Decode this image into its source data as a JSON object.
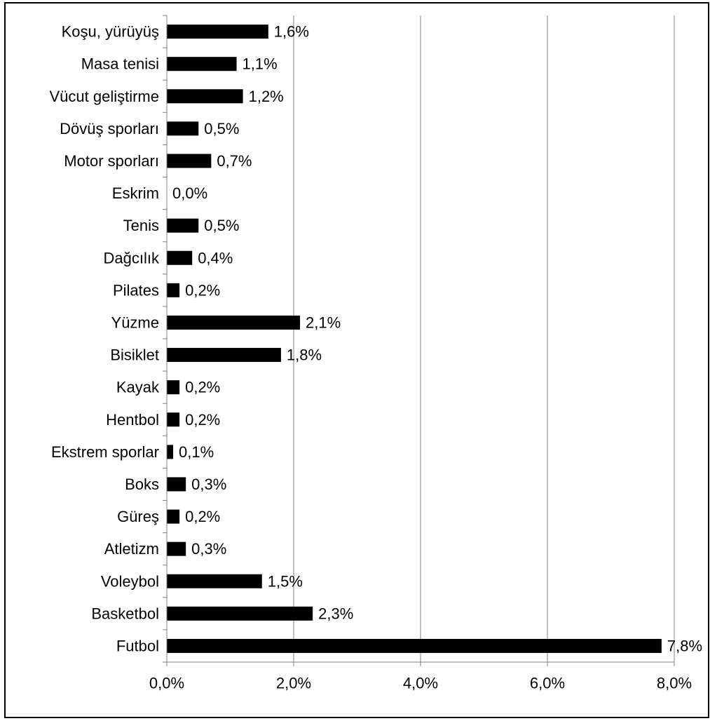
{
  "chart_data": {
    "type": "bar",
    "orientation": "horizontal",
    "categories": [
      "Koşu, yürüyüş",
      "Masa tenisi",
      "Vücut geliştirme",
      "Dövüş sporları",
      "Motor sporları",
      "Eskrim",
      "Tenis",
      "Dağcılık",
      "Pilates",
      "Yüzme",
      "Bisiklet",
      "Kayak",
      "Hentbol",
      "Ekstrem sporlar",
      "Boks",
      "Güreş",
      "Atletizm",
      "Voleybol",
      "Basketbol",
      "Futbol"
    ],
    "values": [
      1.6,
      1.1,
      1.2,
      0.5,
      0.7,
      0.0,
      0.5,
      0.4,
      0.2,
      2.1,
      1.8,
      0.2,
      0.2,
      0.1,
      0.3,
      0.2,
      0.3,
      1.5,
      2.3,
      7.8
    ],
    "data_labels": [
      "1,6%",
      "1,1%",
      "1,2%",
      "0,5%",
      "0,7%",
      "0,0%",
      "0,5%",
      "0,4%",
      "0,2%",
      "2,1%",
      "1,8%",
      "0,2%",
      "0,2%",
      "0,1%",
      "0,3%",
      "0,2%",
      "0,3%",
      "1,5%",
      "2,3%",
      "7,8%"
    ],
    "xlim": [
      0,
      8
    ],
    "x_ticks": [
      0,
      2,
      4,
      6,
      8
    ],
    "x_tick_labels": [
      "0,0%",
      "2,0%",
      "4,0%",
      "6,0%",
      "8,0%"
    ],
    "grid": "vertical",
    "bar_color": "#000000",
    "grid_color": "#808080",
    "title": "",
    "xlabel": "",
    "ylabel": ""
  }
}
